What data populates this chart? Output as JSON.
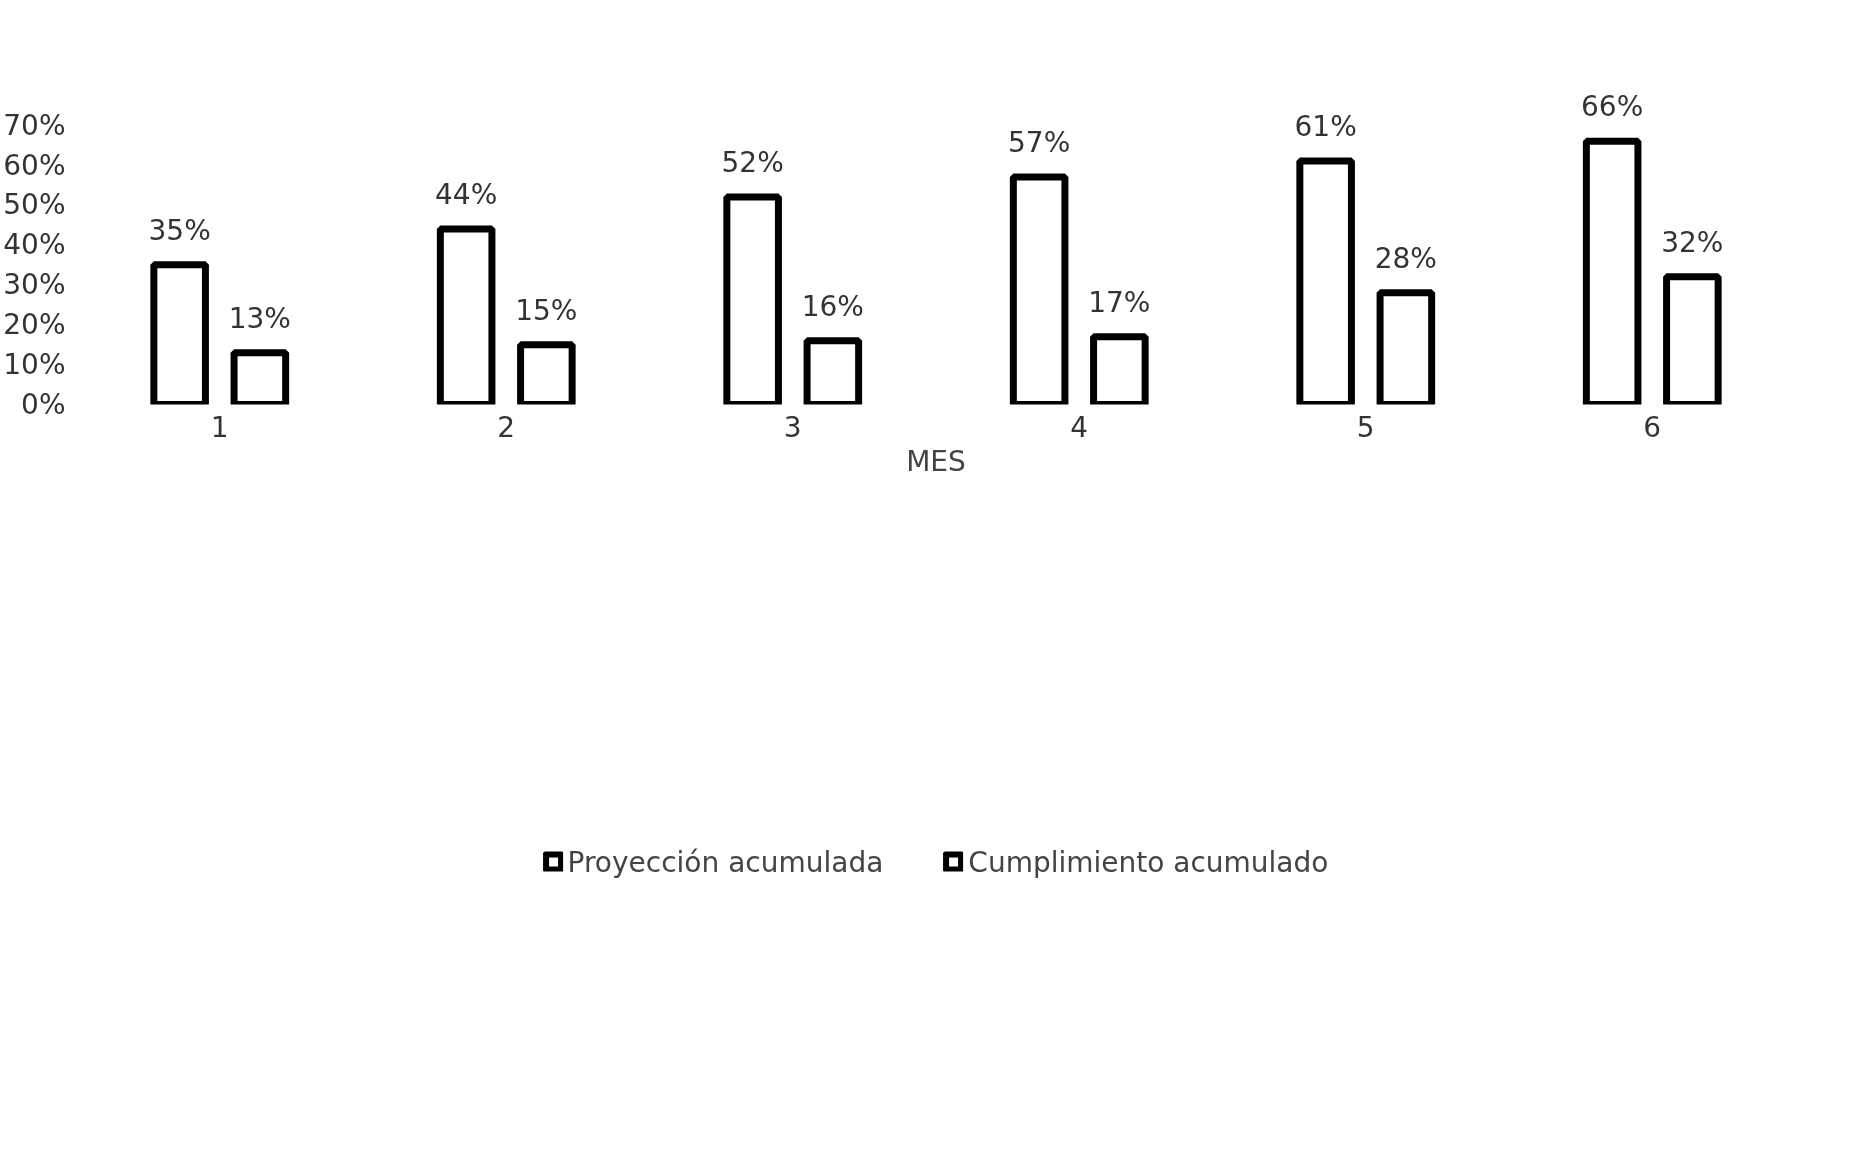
{
  "chart_data": {
    "type": "bar",
    "xlabel": "MES",
    "categories": [
      "1",
      "2",
      "3",
      "4",
      "5",
      "6"
    ],
    "series": [
      {
        "name": "Proyección acumulada",
        "color": "#000000",
        "values": [
          35,
          44,
          52,
          57,
          61,
          66
        ],
        "value_labels": [
          "35%",
          "44%",
          "52%",
          "57%",
          "61%",
          "66%"
        ]
      },
      {
        "name": "Cumplimiento acumulado",
        "color": "#000000",
        "values": [
          13,
          15,
          16,
          17,
          28,
          32
        ],
        "value_labels": [
          "13%",
          "15%",
          "16%",
          "17%",
          "28%",
          "32%"
        ]
      }
    ],
    "ylim": [
      0,
      70
    ],
    "yticks": [
      {
        "value": 0,
        "label": "0%"
      },
      {
        "value": 10,
        "label": "10%"
      },
      {
        "value": 20,
        "label": "20%"
      },
      {
        "value": 30,
        "label": "30%"
      },
      {
        "value": 40,
        "label": "40%"
      },
      {
        "value": 50,
        "label": "50%"
      },
      {
        "value": 60,
        "label": "60%"
      },
      {
        "value": 70,
        "label": "70%"
      }
    ],
    "grid": false,
    "legend": "bottom"
  }
}
